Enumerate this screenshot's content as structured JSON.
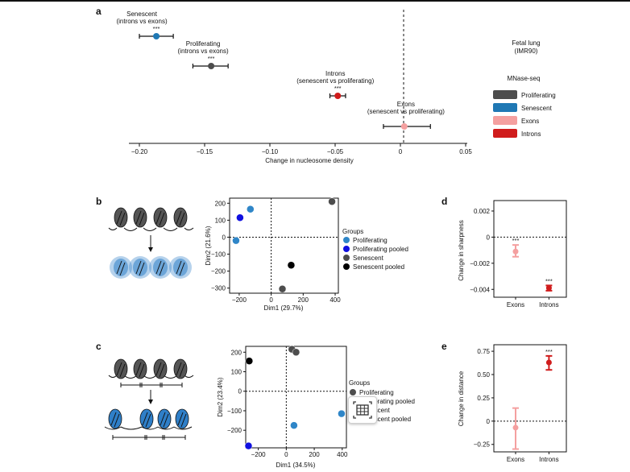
{
  "panel_letters": {
    "a": "a",
    "b": "b",
    "c": "c",
    "d": "d",
    "e": "e"
  },
  "colors": {
    "proliferating": "#4d4d4d",
    "senescent": "#1f78b4",
    "exons": "#f4a0a0",
    "introns": "#d01c1c",
    "proliferating_pca": "#2f86c8",
    "proliferating_pooled": "#1010e0",
    "senescent_pca": "#4d4d4d",
    "senescent_pooled": "#000000",
    "blur_blue": "#2f7fc8"
  },
  "icons": {
    "overlay": "table-grid-icon"
  },
  "panel_a": {
    "title_line1": "Fetal lung",
    "title_line2": "(IMR90)",
    "legend_title": "MNase-seq",
    "legend": [
      "Proliferating",
      "Senescent",
      "Exons",
      "Introns"
    ]
  },
  "groups_title": "Groups",
  "groups_b": [
    "Proliferating",
    "Proliferating pooled",
    "Senescent",
    "Senescent pooled"
  ],
  "groups_c": [
    "Proliferating",
    "Proliferating pooled",
    "Senescent",
    "Senescent pooled"
  ],
  "chart_data": [
    {
      "type": "scatter",
      "panel": "a",
      "xlabel": "Change in nucleosome density",
      "ylabel": "",
      "xlim": [
        -0.2,
        0.05
      ],
      "xticks": [
        "−0.20",
        "−0.15",
        "−0.10",
        "−0.05",
        "0",
        "0.05"
      ],
      "points": [
        {
          "label_line1": "Senescent",
          "label_line2": "(introns vs exons)",
          "sig": "***",
          "x": -0.187,
          "lo": -0.2,
          "hi": -0.174,
          "color": "senescent"
        },
        {
          "label_line1": "Proliferating",
          "label_line2": "(introns vs exons)",
          "sig": "***",
          "x": -0.145,
          "lo": -0.159,
          "hi": -0.132,
          "color": "proliferating"
        },
        {
          "label_line1": "Introns",
          "label_line2": "(senescent vs proliferating)",
          "sig": "***",
          "x": -0.048,
          "lo": -0.054,
          "hi": -0.042,
          "color": "introns"
        },
        {
          "label_line1": "Exons",
          "label_line2": "(senescent vs proliferating)",
          "sig": "",
          "x": 0.003,
          "lo": -0.013,
          "hi": 0.023,
          "color": "exons"
        }
      ]
    },
    {
      "type": "scatter",
      "panel": "b",
      "xlabel": "Dim1 (29.7%)",
      "ylabel": "Dim2 (21.6%)",
      "xlim": [
        -260,
        420
      ],
      "ylim": [
        -330,
        230
      ],
      "xticks": [
        -200,
        0,
        200,
        400
      ],
      "yticks": [
        200,
        100,
        0,
        -100,
        -200,
        -300
      ],
      "points": [
        {
          "x": -130,
          "y": 165,
          "group": "proliferating_pca"
        },
        {
          "x": -220,
          "y": -20,
          "group": "proliferating_pca"
        },
        {
          "x": -195,
          "y": 115,
          "group": "proliferating_pooled"
        },
        {
          "x": 380,
          "y": 210,
          "group": "senescent_pca"
        },
        {
          "x": 70,
          "y": -305,
          "group": "senescent_pca"
        },
        {
          "x": 125,
          "y": -165,
          "group": "senescent_pooled"
        }
      ]
    },
    {
      "type": "scatter",
      "panel": "c",
      "xlabel": "Dim1 (34.5%)",
      "ylabel": "Dim2 (23.4%)",
      "xlim": [
        -290,
        430
      ],
      "ylim": [
        -290,
        230
      ],
      "xticks": [
        -200,
        0,
        200,
        400
      ],
      "yticks": [
        200,
        100,
        0,
        -100,
        -200
      ],
      "points": [
        {
          "x": 40,
          "y": 215,
          "group": "senescent_pca"
        },
        {
          "x": 70,
          "y": 200,
          "group": "senescent_pca"
        },
        {
          "x": -265,
          "y": 155,
          "group": "senescent_pooled"
        },
        {
          "x": 55,
          "y": -175,
          "group": "proliferating_pca"
        },
        {
          "x": 395,
          "y": -115,
          "group": "proliferating_pca"
        },
        {
          "x": -270,
          "y": -280,
          "group": "proliferating_pooled"
        }
      ]
    },
    {
      "type": "scatter",
      "panel": "d",
      "ylabel": "Change in sharpness",
      "ylim": [
        -0.0046,
        0.0028
      ],
      "yticks": [
        "0.002",
        "0",
        "−0.002",
        "−0.004"
      ],
      "categories": [
        "Exons",
        "Introns"
      ],
      "values": [
        -0.0011,
        -0.0039
      ],
      "errors": [
        [
          -0.0015,
          -0.0006
        ],
        [
          -0.0041,
          -0.0037
        ]
      ],
      "sig": [
        "***",
        "***"
      ],
      "point_colors": [
        "exons",
        "introns"
      ]
    },
    {
      "type": "scatter",
      "panel": "e",
      "ylabel": "Change in distance",
      "ylim": [
        -0.33,
        0.82
      ],
      "yticks": [
        "0.75",
        "0.50",
        "0.25",
        "0",
        "−0.25"
      ],
      "categories": [
        "Exons",
        "Introns"
      ],
      "values": [
        -0.07,
        0.63
      ],
      "errors": [
        [
          -0.3,
          0.14
        ],
        [
          0.55,
          0.7
        ]
      ],
      "sig": [
        "",
        "***"
      ],
      "point_colors": [
        "exons",
        "introns"
      ]
    }
  ]
}
